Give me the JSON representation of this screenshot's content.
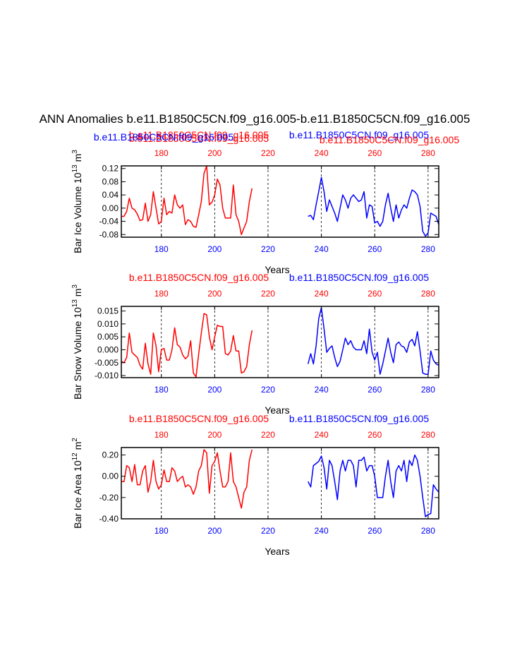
{
  "title": "ANN Anomalies b.e11.B1850C5CN.f09_g16.005-b.e11.B1850C5CN.f09_g16.005",
  "colors": {
    "red": "#ff0000",
    "blue": "#0000ff",
    "black": "#000000",
    "grid": "#000000"
  },
  "chart_data": [
    {
      "type": "line",
      "ylabel": "Bar Ice Volume 10",
      "ylabel_exp": "13",
      "ylabel_unit": " m",
      "ylabel_unit_exp": "3",
      "xlabel": "Years",
      "ylim": [
        -0.088,
        0.128
      ],
      "yticks": [
        0.12,
        0.08,
        0.04,
        0.0,
        -0.04,
        -0.08
      ],
      "ytick_labels": [
        "0.12",
        "0.08",
        "0.04",
        "0.00",
        "-0.04",
        "-0.08"
      ],
      "xlim": [
        165,
        284
      ],
      "gridlines_x": [
        180,
        200,
        220,
        240,
        260,
        280
      ],
      "top_axis_labels": [
        "180",
        "200",
        "220",
        "240",
        "260",
        "280"
      ],
      "bottom_axis_labels": [
        "180",
        "200",
        "220",
        "240",
        "260",
        "280"
      ],
      "top_legends": [
        {
          "text": "b.e11.B1850C5CN.f09_g16.005",
          "color": "red",
          "dx": 0,
          "dy": -3
        },
        {
          "text": "b.e11.B1850C5CN.f09_g16.005",
          "color": "red",
          "dx": 0,
          "dy": 2
        },
        {
          "text": "b.e11.B1850C5CN.f09_g16.005",
          "color": "blue",
          "dx": 0,
          "dy": 0
        }
      ],
      "series": [
        {
          "name": "b.e11.B1850C5CN.f09_g16.005",
          "color": "red",
          "x": [
            165,
            166,
            167,
            168,
            169,
            170,
            171,
            172,
            173,
            174,
            175,
            176,
            177,
            178,
            179,
            180,
            181,
            182,
            183,
            184,
            185,
            186,
            187,
            188,
            189,
            190,
            191,
            192,
            193,
            194,
            195,
            196,
            197,
            198,
            199,
            200,
            201,
            202,
            203,
            204,
            205,
            206,
            207,
            208,
            209,
            210,
            211,
            212,
            213,
            214
          ],
          "values": [
            -0.025,
            -0.025,
            -0.01,
            0.03,
            0.0,
            -0.005,
            -0.018,
            -0.038,
            -0.035,
            0.015,
            -0.04,
            -0.02,
            0.05,
            0.0,
            -0.048,
            -0.04,
            0.03,
            -0.02,
            -0.01,
            -0.015,
            0.04,
            0.01,
            0.0,
            0.01,
            -0.05,
            -0.035,
            -0.04,
            -0.055,
            -0.058,
            -0.02,
            0.02,
            0.105,
            0.128,
            0.01,
            0.018,
            0.04,
            0.088,
            0.07,
            0.0,
            -0.03,
            -0.03,
            -0.03,
            0.07,
            -0.02,
            -0.04,
            -0.08,
            -0.06,
            -0.04,
            0.02,
            0.06
          ]
        },
        {
          "name": "b.e11.B1850C5CN.f09_g16.005",
          "color": "blue",
          "x": [
            235,
            236,
            237,
            238,
            239,
            240,
            241,
            242,
            243,
            244,
            245,
            246,
            247,
            248,
            249,
            250,
            251,
            252,
            253,
            254,
            255,
            256,
            257,
            258,
            259,
            260,
            261,
            262,
            263,
            264,
            265,
            266,
            267,
            268,
            269,
            270,
            271,
            272,
            273,
            274,
            275,
            276,
            277,
            278,
            279,
            280,
            281,
            282,
            283,
            284
          ],
          "values": [
            -0.025,
            -0.022,
            -0.035,
            0.01,
            0.05,
            0.093,
            0.05,
            -0.01,
            0.025,
            0.005,
            -0.015,
            -0.04,
            0.0,
            0.04,
            0.025,
            0.0,
            0.03,
            0.04,
            0.03,
            0.02,
            0.025,
            0.05,
            -0.03,
            0.01,
            0.005,
            -0.045,
            -0.04,
            -0.055,
            -0.04,
            0.01,
            0.045,
            0.0,
            -0.04,
            0.01,
            -0.03,
            -0.005,
            0.01,
            0.0,
            0.03,
            0.055,
            0.05,
            0.04,
            0.005,
            -0.07,
            -0.085,
            -0.075,
            -0.015,
            -0.02,
            -0.025,
            -0.05
          ]
        }
      ]
    },
    {
      "type": "line",
      "ylabel": "Bar Snow Volume 10",
      "ylabel_exp": "13",
      "ylabel_unit": " m",
      "ylabel_unit_exp": "3",
      "xlabel": "Years",
      "ylim": [
        -0.0108,
        0.0168
      ],
      "yticks": [
        0.015,
        0.01,
        0.005,
        0.0,
        -0.005,
        -0.01
      ],
      "ytick_labels": [
        "0.015",
        "0.010",
        "0.005",
        "0.000",
        "-0.005",
        "-0.010"
      ],
      "xlim": [
        165,
        284
      ],
      "gridlines_x": [
        180,
        200,
        220,
        240,
        260,
        280
      ],
      "top_axis_labels": [
        "180",
        "200",
        "220",
        "240",
        "260",
        "280"
      ],
      "bottom_axis_labels": [
        "180",
        "200",
        "220",
        "240",
        "260",
        "280"
      ],
      "top_legends": [
        {
          "text": "b.e11.B1850C5CN.f09_g16.005",
          "color": "red",
          "dx": 0,
          "dy": 0
        },
        {
          "text": "b.e11.B1850C5CN.f09_g16.005",
          "color": "blue",
          "dx": 0,
          "dy": 0
        }
      ],
      "series": [
        {
          "name": "b.e11.B1850C5CN.f09_g16.005",
          "color": "red",
          "x": [
            165,
            166,
            167,
            168,
            169,
            170,
            171,
            172,
            173,
            174,
            175,
            176,
            177,
            178,
            179,
            180,
            181,
            182,
            183,
            184,
            185,
            186,
            187,
            188,
            189,
            190,
            191,
            192,
            193,
            194,
            195,
            196,
            197,
            198,
            199,
            200,
            201,
            202,
            203,
            204,
            205,
            206,
            207,
            208,
            209,
            210,
            211,
            212,
            213,
            214
          ],
          "values": [
            -0.0045,
            -0.005,
            -0.003,
            0.0065,
            -0.001,
            -0.002,
            -0.003,
            -0.006,
            -0.0075,
            0.0025,
            -0.0055,
            -0.0095,
            0.0065,
            0.0015,
            -0.0085,
            0.0,
            0.0005,
            -0.004,
            -0.004,
            0.0,
            0.0085,
            0.002,
            0.001,
            -0.002,
            -0.0035,
            -0.0025,
            0.0035,
            -0.009,
            -0.0105,
            -0.0015,
            0.0065,
            0.014,
            0.0135,
            0.005,
            0.0,
            0.005,
            0.0095,
            0.009,
            0.009,
            -0.0015,
            -0.002,
            -0.0005,
            0.0055,
            -0.0005,
            -0.0005,
            -0.009,
            -0.0085,
            -0.0065,
            0.002,
            0.0075
          ]
        },
        {
          "name": "b.e11.B1850C5CN.f09_g16.005",
          "color": "blue",
          "x": [
            235,
            236,
            237,
            238,
            239,
            240,
            241,
            242,
            243,
            244,
            245,
            246,
            247,
            248,
            249,
            250,
            251,
            252,
            253,
            254,
            255,
            256,
            257,
            258,
            259,
            260,
            261,
            262,
            263,
            264,
            265,
            266,
            267,
            268,
            269,
            270,
            271,
            272,
            273,
            274,
            275,
            276,
            277,
            278,
            279,
            280,
            281,
            282,
            283,
            284
          ],
          "values": [
            -0.0055,
            -0.0015,
            -0.0055,
            0.0015,
            0.012,
            0.0163,
            0.008,
            -0.001,
            0.0005,
            0.0015,
            -0.003,
            -0.0065,
            -0.0045,
            0.0,
            0.0045,
            0.002,
            0.0035,
            0.001,
            0.0,
            0.0,
            0.0,
            0.0035,
            -0.0015,
            0.008,
            -0.001,
            -0.004,
            -0.001,
            -0.0095,
            -0.0055,
            -0.0005,
            0.0045,
            -0.001,
            -0.005,
            0.002,
            0.003,
            0.0015,
            0.001,
            -0.001,
            0.003,
            0.004,
            0.0015,
            0.007,
            -0.0005,
            -0.009,
            -0.0095,
            -0.0095,
            -0.0005,
            -0.004,
            -0.0055,
            -0.006
          ]
        }
      ]
    },
    {
      "type": "line",
      "ylabel": "Bar Ice Area 10",
      "ylabel_exp": "12",
      "ylabel_unit": " m",
      "ylabel_unit_exp": "2",
      "xlabel": "Years",
      "ylim": [
        -0.4,
        0.27
      ],
      "yticks": [
        0.2,
        0.0,
        -0.2,
        -0.4
      ],
      "ytick_labels": [
        "0.20",
        "0.00",
        "-0.20",
        "-0.40"
      ],
      "xlim": [
        165,
        284
      ],
      "gridlines_x": [
        180,
        200,
        220,
        240,
        260,
        280
      ],
      "top_axis_labels": [
        "180",
        "200",
        "220",
        "240",
        "260",
        "280"
      ],
      "bottom_axis_labels": [
        "180",
        "200",
        "220",
        "240",
        "260",
        "280"
      ],
      "top_legends": [
        {
          "text": "b.e11.B1850C5CN.f09_g16.005",
          "color": "red",
          "dx": 0,
          "dy": 0
        },
        {
          "text": "b.e11.B1850C5CN.f09_g16.005",
          "color": "blue",
          "dx": 0,
          "dy": 0
        }
      ],
      "series": [
        {
          "name": "b.e11.B1850C5CN.f09_g16.005",
          "color": "red",
          "x": [
            165,
            166,
            167,
            168,
            169,
            170,
            171,
            172,
            173,
            174,
            175,
            176,
            177,
            178,
            179,
            180,
            181,
            182,
            183,
            184,
            185,
            186,
            187,
            188,
            189,
            190,
            191,
            192,
            193,
            194,
            195,
            196,
            197,
            198,
            199,
            200,
            201,
            202,
            203,
            204,
            205,
            206,
            207,
            208,
            209,
            210,
            211,
            212,
            213,
            214
          ],
          "values": [
            -0.05,
            -0.05,
            0.1,
            0.08,
            -0.05,
            0.11,
            -0.08,
            -0.08,
            0.05,
            0.1,
            -0.15,
            -0.05,
            0.15,
            -0.05,
            -0.12,
            -0.08,
            0.06,
            -0.05,
            -0.05,
            0.08,
            0.05,
            -0.05,
            -0.02,
            0.0,
            -0.1,
            -0.08,
            -0.1,
            -0.17,
            -0.1,
            0.05,
            0.1,
            0.25,
            0.22,
            -0.16,
            0.1,
            0.14,
            0.22,
            0.05,
            -0.1,
            -0.1,
            -0.05,
            0.22,
            -0.05,
            -0.1,
            -0.2,
            -0.3,
            -0.15,
            -0.1,
            0.15,
            0.25
          ]
        },
        {
          "name": "b.e11.B1850C5CN.f09_g16.005",
          "color": "blue",
          "x": [
            235,
            236,
            237,
            238,
            239,
            240,
            241,
            242,
            243,
            244,
            245,
            246,
            247,
            248,
            249,
            250,
            251,
            252,
            253,
            254,
            255,
            256,
            257,
            258,
            259,
            260,
            261,
            262,
            263,
            264,
            265,
            266,
            267,
            268,
            269,
            270,
            271,
            272,
            273,
            274,
            275,
            276,
            277,
            278,
            279,
            280,
            281,
            282,
            283,
            284
          ],
          "values": [
            -0.05,
            -0.1,
            0.1,
            0.12,
            0.14,
            0.19,
            0.08,
            -0.12,
            0.15,
            0.1,
            -0.05,
            -0.22,
            0.05,
            0.15,
            0.05,
            0.15,
            0.15,
            0.1,
            -0.1,
            0.15,
            0.15,
            0.18,
            0.05,
            0.1,
            0.1,
            0.0,
            -0.2,
            -0.2,
            -0.2,
            0.0,
            0.15,
            -0.05,
            -0.2,
            0.05,
            0.1,
            0.05,
            0.15,
            -0.05,
            0.15,
            0.1,
            0.2,
            0.15,
            0.0,
            -0.2,
            -0.38,
            -0.36,
            -0.35,
            -0.08,
            -0.12,
            -0.15
          ]
        }
      ]
    }
  ]
}
